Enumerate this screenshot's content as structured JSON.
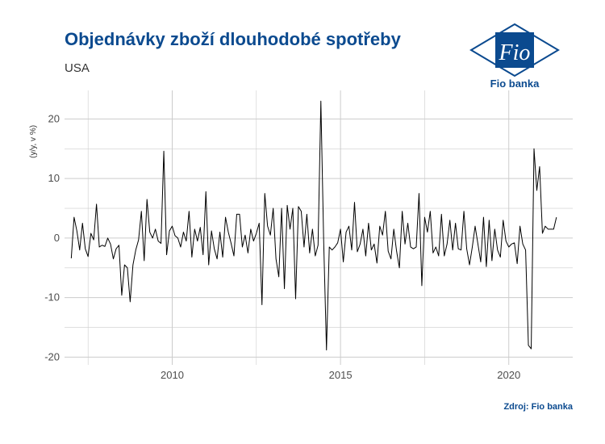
{
  "title": "Objednávky zboží dlouhodobé spotřeby",
  "subtitle": "USA",
  "source": "Zdroj: Fio banka",
  "logo": {
    "mark_text": "Fio",
    "brand_text": "Fio banka"
  },
  "colors": {
    "title": "#0b4a8f",
    "logo": "#0b4a8f",
    "line": "#000000",
    "grid": "#cccccc"
  },
  "chart_data": {
    "type": "line",
    "title": "Objednávky zboží dlouhodobé spotřeby",
    "subtitle": "USA",
    "xlabel": "",
    "ylabel": "(y/y, v %)",
    "xlim": [
      2006.8,
      2021.9
    ],
    "ylim": [
      -21.3,
      24.8
    ],
    "x_ticks": [
      2010,
      2015,
      2020
    ],
    "x_tick_labels": [
      "2010",
      "2015",
      "2020"
    ],
    "y_ticks": [
      -20,
      -10,
      0,
      10,
      20
    ],
    "y_tick_labels": [
      "-20",
      "-10",
      "0",
      "10",
      "20"
    ],
    "grid": true,
    "legend": "none",
    "series": [
      {
        "start": 2007.0,
        "step": 0.08333,
        "values": [
          -3.4,
          3.5,
          1.2,
          -2.0,
          2.5,
          -1.8,
          -3.1,
          0.8,
          -0.3,
          5.7,
          -1.5,
          -1.2,
          -1.4,
          0.0,
          -1.0,
          -3.5,
          -1.8,
          -1.2,
          -9.6,
          -4.5,
          -5.0,
          -10.7,
          -4.5,
          -2.0,
          -0.3,
          4.5,
          -3.8,
          6.5,
          1.0,
          0.0,
          1.5,
          -0.5,
          -0.9,
          14.6,
          -2.8,
          1.2,
          2.0,
          0.4,
          0.0,
          -1.5,
          1.0,
          -0.5,
          4.5,
          -3.2,
          1.5,
          -0.5,
          1.8,
          -2.8,
          7.8,
          -4.5,
          1.2,
          -1.8,
          -3.5,
          1.0,
          -3.2,
          3.5,
          1.0,
          -0.9,
          -3.0,
          4.0,
          4.0,
          -1.5,
          0.5,
          -2.5,
          1.5,
          -0.5,
          0.8,
          2.5,
          -11.2,
          7.5,
          2.0,
          0.5,
          5.0,
          -3.5,
          -6.5,
          5.0,
          -8.5,
          5.5,
          1.5,
          5.0,
          -10.2,
          5.3,
          4.5,
          -1.5,
          4.0,
          -2.5,
          1.5,
          -3.0,
          -1.2,
          23.0,
          -0.5,
          -18.8,
          -1.5,
          -2.0,
          -1.5,
          -0.8,
          1.5,
          -4.0,
          1.0,
          2.0,
          -2.0,
          6.0,
          -2.3,
          -1.0,
          1.5,
          -3.0,
          2.5,
          -2.0,
          -1.0,
          -4.2,
          2.0,
          0.5,
          4.5,
          -2.2,
          -3.5,
          1.5,
          -2.2,
          -5.0,
          4.5,
          -1.0,
          2.5,
          -1.5,
          -1.8,
          -1.5,
          7.5,
          -8.0,
          3.5,
          1.0,
          4.5,
          -2.5,
          -1.5,
          -3.0,
          4.0,
          -3.0,
          -1.0,
          3.0,
          -2.0,
          2.5,
          -1.8,
          -2.0,
          4.5,
          -1.8,
          -4.5,
          -1.5,
          2.0,
          -1.0,
          -4.0,
          3.5,
          -4.8,
          3.0,
          -3.8,
          1.5,
          -2.0,
          -3.2,
          3.0,
          -0.5,
          -1.5,
          -1.0,
          -0.8,
          -4.3,
          2.0,
          -1.0,
          -2.0,
          -18.0,
          -18.6,
          15.0,
          8.0,
          12.0,
          0.8,
          2.0,
          1.5,
          1.5,
          1.5,
          3.5
        ]
      }
    ]
  }
}
